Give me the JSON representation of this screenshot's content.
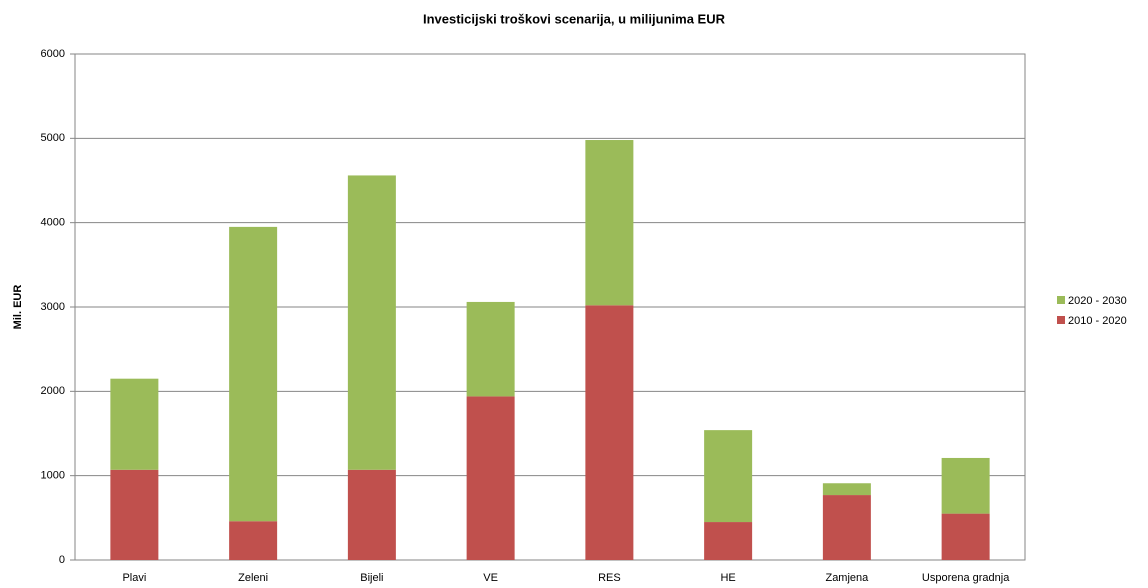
{
  "chart_data": {
    "type": "stacked_bar",
    "title": "Investicijski troškovi scenarija, u milijunima EUR",
    "y_label": "Mil. EUR",
    "categories": [
      "Plavi",
      "Zeleni",
      "Bijeli",
      "VE",
      "RES",
      "HE",
      "Zamjena",
      "Usporena gradnja"
    ],
    "series": [
      {
        "name": "2010 - 2020",
        "color": "#c0504d",
        "values": [
          1070,
          460,
          1070,
          1940,
          3020,
          450,
          770,
          550
        ]
      },
      {
        "name": "2020 - 2030",
        "color": "#9bbb59",
        "values": [
          1080,
          3490,
          3490,
          1120,
          1960,
          1090,
          140,
          660
        ]
      }
    ],
    "ylim": [
      0,
      6000
    ],
    "yticks": [
      0,
      1000,
      2000,
      3000,
      4000,
      5000,
      6000
    ],
    "grid": true,
    "legend": "right"
  }
}
